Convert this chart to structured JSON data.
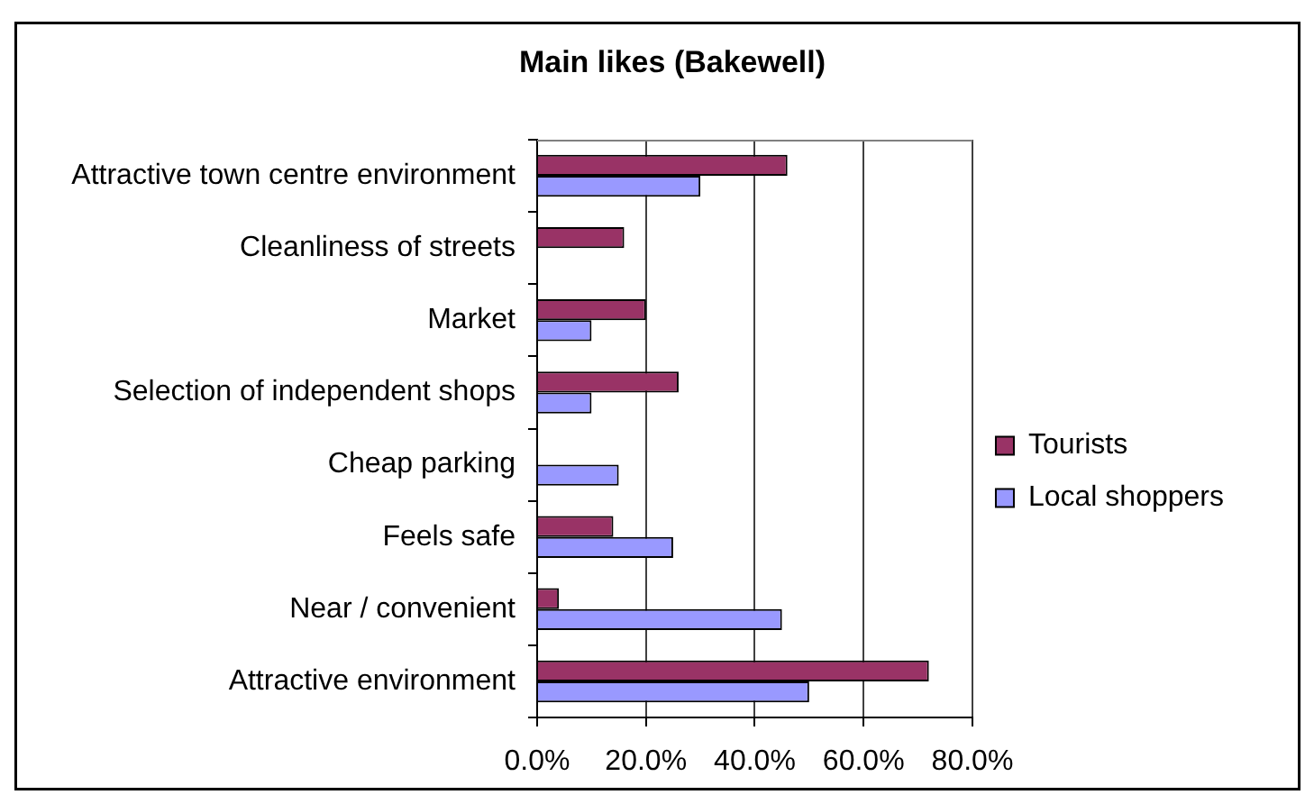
{
  "chart_data": {
    "type": "bar",
    "orientation": "horizontal",
    "title": "Main likes (Bakewell)",
    "categories": [
      "Attractive town centre environment",
      "Cleanliness of streets",
      "Market",
      "Selection of independent shops",
      "Cheap parking",
      "Feels safe",
      "Near / convenient",
      "Attractive environment"
    ],
    "series": [
      {
        "name": "Tourists",
        "color": "#993366",
        "values": [
          46,
          16,
          20,
          26,
          null,
          14,
          4,
          72
        ]
      },
      {
        "name": "Local shoppers",
        "color": "#9999ff",
        "values": [
          30,
          null,
          10,
          10,
          15,
          25,
          45,
          50
        ]
      }
    ],
    "xlim": [
      0,
      80
    ],
    "xticks": [
      {
        "value": 0,
        "label": "0.0%"
      },
      {
        "value": 20,
        "label": "20.0%"
      },
      {
        "value": 40,
        "label": "40.0%"
      },
      {
        "value": 60,
        "label": "60.0%"
      },
      {
        "value": 80,
        "label": "80.0%"
      }
    ],
    "grid": "x",
    "legend": "right"
  }
}
